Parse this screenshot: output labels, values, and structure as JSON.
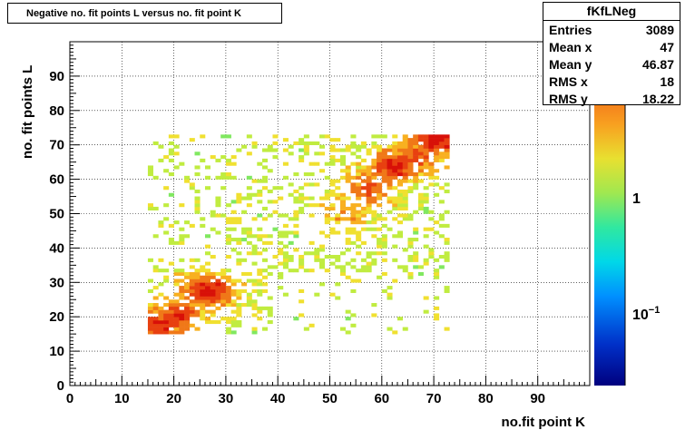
{
  "chart_data": {
    "type": "heatmap",
    "title": "Negative no. fit points L versus no. fit point K",
    "xlabel": "no.fit point K",
    "ylabel": "no. fit points  L",
    "xlim": [
      0,
      100
    ],
    "ylim": [
      0,
      100
    ],
    "xticks": [
      "0",
      "10",
      "20",
      "30",
      "40",
      "50",
      "60",
      "70",
      "80",
      "90"
    ],
    "yticks": [
      "0",
      "10",
      "20",
      "30",
      "40",
      "50",
      "60",
      "70",
      "80",
      "90"
    ],
    "colorbar_ticks": [
      "1",
      "10^-1"
    ],
    "grid": true,
    "palette": [
      "#00007f",
      "#0030c8",
      "#0090ff",
      "#00d8e8",
      "#30e8a0",
      "#80e860",
      "#c0ec40",
      "#f0e030",
      "#f8b020",
      "#f07818",
      "#e84010",
      "#d81008"
    ],
    "hotspots": [
      {
        "x": 26,
        "y": 27,
        "level": 1.0
      },
      {
        "x": 20,
        "y": 20,
        "level": 0.85
      },
      {
        "x": 17,
        "y": 17,
        "level": 0.8
      },
      {
        "x": 62,
        "y": 63,
        "level": 0.9
      },
      {
        "x": 70,
        "y": 71,
        "level": 1.0
      },
      {
        "x": 57,
        "y": 57,
        "level": 0.7
      },
      {
        "x": 66,
        "y": 66,
        "level": 0.75
      },
      {
        "x": 53,
        "y": 50,
        "level": 0.45
      }
    ],
    "region_x": [
      15,
      73
    ],
    "region_y": [
      15,
      73
    ]
  },
  "stats": {
    "name": "fKfLNeg",
    "rows": [
      {
        "label": "Entries",
        "value": "3089"
      },
      {
        "label": "Mean x",
        "value": "47"
      },
      {
        "label": "Mean y",
        "value": "46.87"
      },
      {
        "label": "RMS x",
        "value": "18"
      },
      {
        "label": "RMS y",
        "value": "18.22"
      }
    ]
  }
}
